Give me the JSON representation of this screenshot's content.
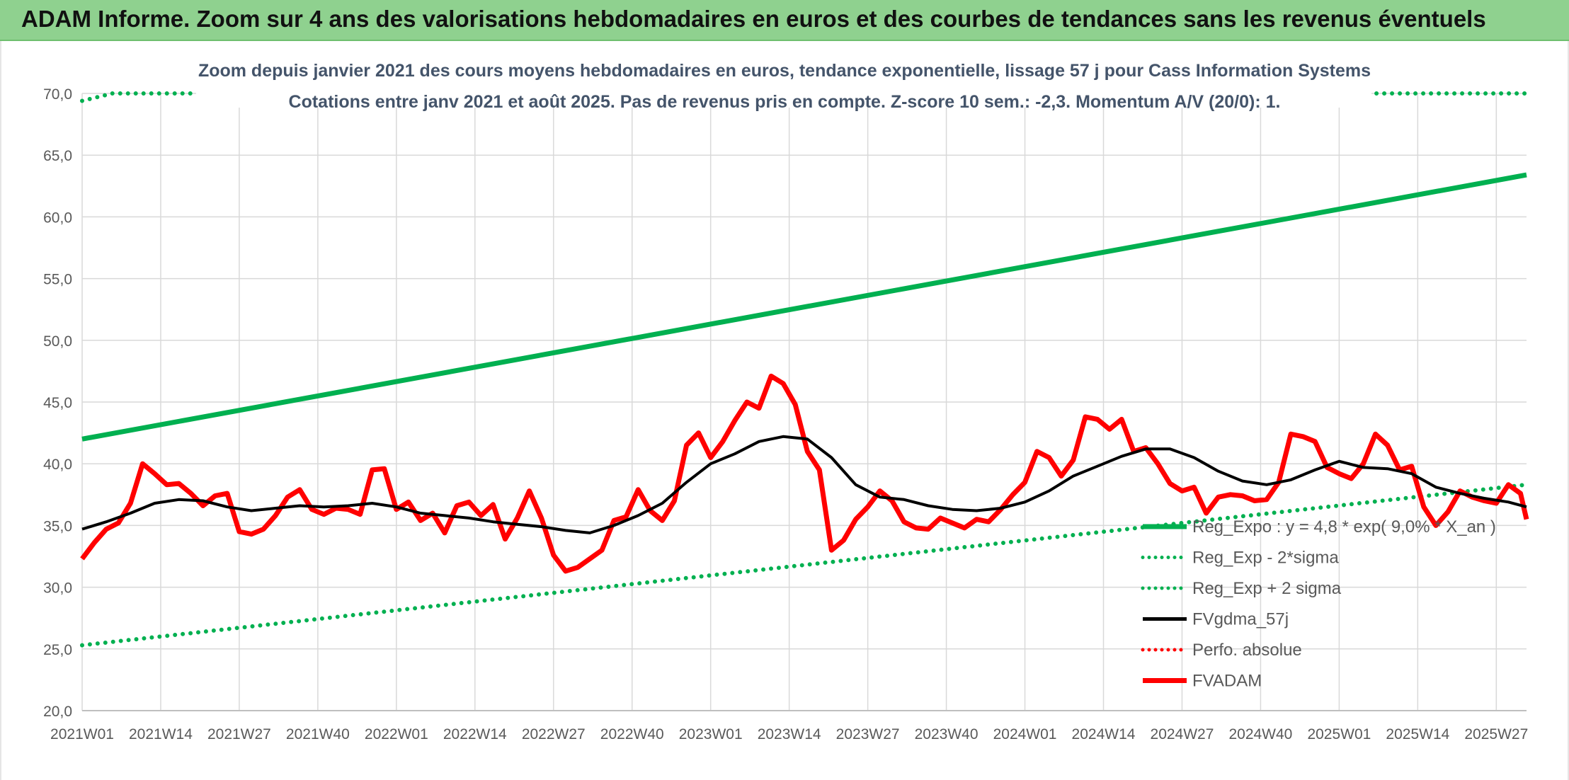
{
  "banner": {
    "title": "ADAM Informe. Zoom sur 4 ans des valorisations hebdomadaires en euros et des courbes de tendances sans les revenus éventuels"
  },
  "colors": {
    "banner_bg": "#8fd18f",
    "trend": "#00b050",
    "fvgdma": "#000000",
    "fvadam": "#ff0000",
    "perfo": "#ff0000",
    "grid": "#d9d9d9",
    "axis_text": "#595959",
    "title_text": "#44546a"
  },
  "chart_data": {
    "type": "line",
    "title_line1": "Zoom depuis janvier 2021 des cours moyens hebdomadaires en euros, tendance exponentielle, lissage 57 j pour Cass Information Systems",
    "title_line2": "Cotations entre janv 2021 et août 2025. Pas de revenus pris en compte. Z-score 10 sem.: -2,3. Momentum A/V (20/0): 1.",
    "ylim": [
      20,
      70
    ],
    "yticks": [
      "20,0",
      "25,0",
      "30,0",
      "35,0",
      "40,0",
      "45,0",
      "50,0",
      "55,0",
      "60,0",
      "65,0",
      "70,0"
    ],
    "grid": true,
    "legend_position": "bottom-right",
    "x_tick_labels": [
      "2021W01",
      "2021W14",
      "2021W27",
      "2021W40",
      "2022W01",
      "2022W14",
      "2022W27",
      "2022W40",
      "2023W01",
      "2023W14",
      "2023W27",
      "2023W40",
      "2024W01",
      "2024W14",
      "2024W27",
      "2024W40",
      "2025W01",
      "2025W14",
      "2025W27"
    ],
    "x_tick_weeks": [
      0,
      13,
      26,
      39,
      52,
      65,
      78,
      91,
      104,
      117,
      130,
      143,
      156,
      169,
      182,
      195,
      208,
      221,
      234
    ],
    "n_weeks": 240,
    "series_meta": [
      {
        "key": "reg_expo",
        "name": "Reg_Expo : y = 4,8 * exp( 9,0% * X_an )",
        "style": "solid-thick",
        "color": "#00b050"
      },
      {
        "key": "reg_minus",
        "name": "Reg_Exp - 2*sigma",
        "style": "dotted",
        "color": "#00b050"
      },
      {
        "key": "reg_plus",
        "name": "Reg_Exp + 2 sigma",
        "style": "dotted",
        "color": "#00b050"
      },
      {
        "key": "fvgdma",
        "name": "FVgdma_57j",
        "style": "solid",
        "color": "#000000"
      },
      {
        "key": "perfo",
        "name": "Perfo. absolue",
        "style": "dotted",
        "color": "#ff0000"
      },
      {
        "key": "fvadam",
        "name": "FVADAM",
        "style": "solid-thick",
        "color": "#ff0000"
      }
    ],
    "reg_expo": {
      "week": [
        0,
        239
      ],
      "value": [
        42.0,
        63.4
      ]
    },
    "reg_minus": {
      "week": [
        0,
        239
      ],
      "value": [
        25.3,
        38.3
      ]
    },
    "reg_plus_segments": [
      {
        "week": [
          0,
          5,
          18
        ],
        "value": [
          69.4,
          70.0,
          70.0
        ]
      },
      {
        "week": [
          200,
          239
        ],
        "value": [
          70.0,
          70.0
        ]
      }
    ],
    "fvadam": {
      "week": [
        0,
        2,
        4,
        6,
        8,
        10,
        12,
        14,
        16,
        18,
        20,
        22,
        24,
        26,
        28,
        30,
        32,
        34,
        36,
        38,
        40,
        42,
        44,
        46,
        48,
        50,
        52,
        54,
        56,
        58,
        60,
        62,
        64,
        66,
        68,
        70,
        72,
        74,
        76,
        78,
        80,
        82,
        84,
        86,
        88,
        90,
        92,
        94,
        96,
        98,
        100,
        102,
        104,
        106,
        108,
        110,
        112,
        114,
        116,
        118,
        120,
        122,
        124,
        126,
        128,
        130,
        132,
        134,
        136,
        138,
        140,
        142,
        144,
        146,
        148,
        150,
        152,
        154,
        156,
        158,
        160,
        162,
        164,
        166,
        168,
        170,
        172,
        174,
        176,
        178,
        180,
        182,
        184,
        186,
        188,
        190,
        192,
        194,
        196,
        198,
        200,
        202,
        204,
        206,
        208,
        210,
        212,
        214,
        216,
        218,
        220,
        222,
        224,
        226,
        228,
        230,
        232,
        234,
        236,
        238,
        239
      ],
      "value": [
        32.3,
        33.6,
        34.7,
        35.2,
        36.8,
        40.0,
        39.2,
        38.3,
        38.4,
        37.6,
        36.6,
        37.4,
        37.6,
        34.5,
        34.3,
        34.7,
        35.8,
        37.3,
        37.9,
        36.3,
        35.9,
        36.4,
        36.3,
        35.9,
        39.5,
        39.6,
        36.3,
        36.9,
        35.4,
        36.0,
        34.4,
        36.6,
        36.9,
        35.8,
        36.7,
        33.9,
        35.6,
        37.8,
        35.6,
        32.6,
        31.3,
        31.6,
        32.3,
        33.0,
        35.4,
        35.7,
        37.9,
        36.2,
        35.4,
        37.0,
        41.5,
        42.5,
        40.5,
        41.8,
        43.5,
        45.0,
        44.5,
        47.1,
        46.5,
        44.8,
        41.0,
        39.5,
        33.0,
        33.8,
        35.5,
        36.5,
        37.8,
        37.0,
        35.3,
        34.8,
        34.7,
        35.6,
        35.2,
        34.8,
        35.5,
        35.3,
        36.3,
        37.5,
        38.5,
        41.0,
        40.5,
        39.0,
        40.3,
        43.8,
        43.6,
        42.8,
        43.6,
        41.0,
        41.3,
        40.0,
        38.4,
        37.8,
        38.1,
        36.0,
        37.3,
        37.5,
        37.4,
        37.0,
        37.1,
        38.5,
        42.4,
        42.2,
        41.8,
        39.7,
        39.2,
        38.8,
        40.0,
        42.4,
        41.5,
        39.5,
        39.8,
        36.5,
        35.0,
        36.1,
        37.8,
        37.3,
        37.0,
        36.8,
        38.3,
        37.6,
        35.5
      ]
    },
    "fvgdma": {
      "week": [
        0,
        4,
        8,
        12,
        16,
        20,
        24,
        28,
        32,
        36,
        40,
        44,
        48,
        52,
        56,
        60,
        64,
        68,
        72,
        76,
        80,
        84,
        88,
        92,
        96,
        100,
        104,
        108,
        112,
        116,
        120,
        124,
        128,
        132,
        136,
        140,
        144,
        148,
        152,
        156,
        160,
        164,
        168,
        172,
        176,
        180,
        184,
        188,
        192,
        196,
        200,
        204,
        208,
        212,
        216,
        220,
        224,
        228,
        232,
        236,
        239
      ],
      "value": [
        34.7,
        35.3,
        36.0,
        36.8,
        37.1,
        37.0,
        36.5,
        36.2,
        36.4,
        36.6,
        36.5,
        36.6,
        36.8,
        36.5,
        36.0,
        35.8,
        35.6,
        35.3,
        35.1,
        34.9,
        34.6,
        34.4,
        35.0,
        35.8,
        36.8,
        38.5,
        40.0,
        40.8,
        41.8,
        42.2,
        42.0,
        40.5,
        38.3,
        37.3,
        37.1,
        36.6,
        36.3,
        36.2,
        36.4,
        36.9,
        37.8,
        39.0,
        39.8,
        40.6,
        41.2,
        41.2,
        40.5,
        39.4,
        38.6,
        38.3,
        38.7,
        39.5,
        40.2,
        39.7,
        39.6,
        39.2,
        38.1,
        37.6,
        37.2,
        36.9,
        36.5
      ]
    }
  }
}
